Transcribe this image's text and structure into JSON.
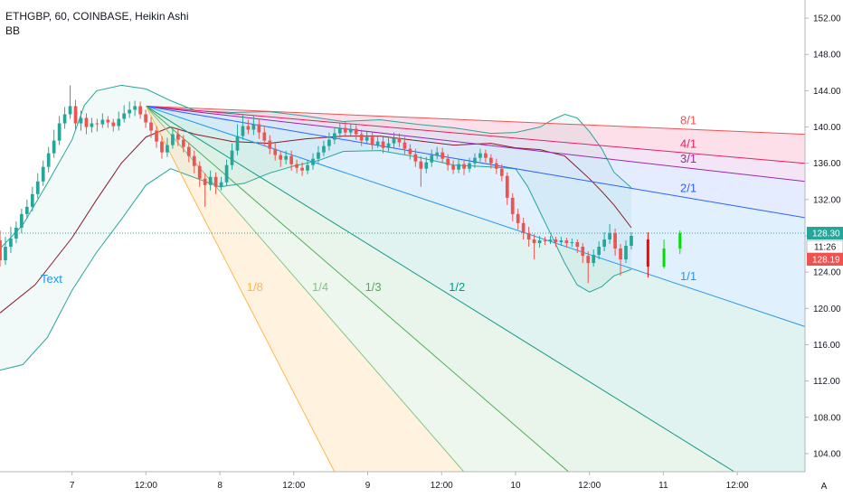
{
  "legend": {
    "symbol_line": "ETHGBP, 60, COINBASE, Heikin Ashi",
    "indicator": "BB"
  },
  "chart_data": {
    "type": "candlestick",
    "symbol": "ETHGBP",
    "interval": "60",
    "exchange": "COINBASE",
    "style": "Heikin Ashi",
    "ylim": [
      102,
      154
    ],
    "y_ticks": [
      104,
      108,
      112,
      116,
      120,
      124,
      128,
      132,
      136,
      140,
      144,
      148,
      152
    ],
    "y_tick_labels": [
      "104.00",
      "108.00",
      "112.00",
      "116.00",
      "120.00",
      "124.00",
      "128.00",
      "132.00",
      "136.00",
      "140.00",
      "144.00",
      "148.00",
      "152.00"
    ],
    "x_tick_labels": [
      "7",
      "12:00",
      "8",
      "12:00",
      "9",
      "12:00",
      "10",
      "12:00",
      "11",
      "12:00"
    ],
    "x_tick_hours": [
      0,
      12,
      24,
      36,
      48,
      60,
      72,
      84,
      96,
      108
    ],
    "x_start_hour": -11.7,
    "x_end_hour": 119,
    "corner_label": "A",
    "text_annotation": "Text",
    "price_lines": {
      "last_price": "128.30",
      "countdown": "11:26",
      "current": "128.19",
      "last_price_value": 128.3
    },
    "gann_fan": {
      "origin": {
        "hour": 12,
        "price": 142.3
      },
      "rays": [
        {
          "label": "8/1",
          "end_price": 139.2,
          "color": "#ef5350",
          "fill": "rgba(239,83,80,0.16)"
        },
        {
          "label": "4/1",
          "end_price": 136.0,
          "color": "#e91e63",
          "fill": "rgba(233,30,99,0.14)"
        },
        {
          "label": "3/1",
          "end_price": 134.0,
          "color": "#9c27b0",
          "fill": "rgba(156,39,176,0.12)"
        },
        {
          "label": "2/1",
          "end_price": 130.0,
          "color": "#2962ff",
          "fill": "rgba(41,98,255,0.12)"
        },
        {
          "label": "1/1",
          "end_price": 118.0,
          "color": "#2196f3",
          "fill": "rgba(33,150,243,0.14)"
        },
        {
          "label": "1/2",
          "end_price": 102.0,
          "end_hour": 107.5,
          "color": "#089981",
          "fill": "rgba(8,153,129,0.12)"
        },
        {
          "label": "1/3",
          "end_price": 102.0,
          "end_hour": 80.6,
          "color": "#4caf50",
          "fill": "rgba(76,175,80,0.12)"
        },
        {
          "label": "1/4",
          "end_price": 102.0,
          "end_hour": 63.6,
          "color": "#81c784",
          "fill": "rgba(129,199,132,0.14)"
        },
        {
          "label": "1/8",
          "end_price": 102.0,
          "end_hour": 42.6,
          "color": "#ffb74d",
          "fill": "rgba(255,183,77,0.18)"
        }
      ]
    },
    "candles": [
      [
        127.5,
        125.3,
        128.6,
        124.6
      ],
      [
        125.3,
        126.8,
        127.9,
        124.8
      ],
      [
        126.8,
        127.7,
        129.0,
        126.1
      ],
      [
        127.7,
        128.9,
        129.6,
        127.2
      ],
      [
        128.9,
        130.4,
        131.0,
        128.3
      ],
      [
        130.4,
        131.2,
        132.0,
        129.9
      ],
      [
        131.2,
        132.6,
        133.4,
        130.7
      ],
      [
        132.6,
        134.0,
        134.9,
        132.1
      ],
      [
        134.0,
        135.6,
        136.3,
        133.5
      ],
      [
        135.6,
        137.1,
        137.8,
        135.0
      ],
      [
        137.1,
        138.5,
        139.7,
        136.6
      ],
      [
        138.5,
        140.4,
        141.2,
        138.0
      ],
      [
        140.4,
        141.4,
        142.2,
        139.8
      ],
      [
        141.4,
        142.3,
        144.6,
        140.9
      ],
      [
        142.3,
        140.4,
        143.0,
        139.7
      ],
      [
        140.4,
        141.0,
        141.8,
        139.6
      ],
      [
        141.0,
        140.0,
        141.5,
        139.2
      ],
      [
        140.0,
        140.4,
        141.0,
        139.4
      ],
      [
        140.4,
        140.3,
        140.9,
        139.5
      ],
      [
        140.3,
        140.8,
        141.5,
        139.9
      ],
      [
        140.8,
        140.5,
        141.2,
        139.9
      ],
      [
        140.5,
        140.1,
        140.9,
        139.5
      ],
      [
        140.1,
        140.9,
        141.7,
        139.6
      ],
      [
        140.9,
        141.5,
        142.4,
        140.5
      ],
      [
        141.5,
        141.9,
        142.8,
        141.0
      ],
      [
        141.9,
        142.3,
        142.9,
        141.2
      ],
      [
        142.3,
        141.4,
        142.8,
        140.9
      ],
      [
        141.4,
        140.5,
        141.9,
        139.9
      ],
      [
        140.5,
        139.6,
        141.1,
        138.8
      ],
      [
        139.6,
        138.4,
        140.1,
        137.7
      ],
      [
        138.4,
        137.2,
        139.0,
        136.5
      ],
      [
        137.2,
        138.0,
        138.8,
        136.7
      ],
      [
        138.0,
        139.2,
        139.8,
        137.6
      ],
      [
        139.2,
        138.6,
        139.9,
        137.9
      ],
      [
        138.6,
        137.8,
        139.1,
        137.2
      ],
      [
        137.8,
        136.8,
        138.3,
        136.1
      ],
      [
        136.8,
        135.7,
        137.4,
        134.9
      ],
      [
        135.7,
        134.3,
        136.2,
        133.4
      ],
      [
        134.3,
        133.6,
        134.9,
        131.2
      ],
      [
        133.6,
        134.5,
        135.2,
        133.0
      ],
      [
        134.5,
        133.4,
        135.0,
        132.6
      ],
      [
        133.4,
        133.9,
        134.5,
        133.0
      ],
      [
        133.9,
        135.8,
        136.4,
        133.5
      ],
      [
        135.8,
        137.4,
        138.2,
        135.3
      ],
      [
        137.4,
        139.0,
        140.3,
        136.9
      ],
      [
        139.0,
        140.1,
        141.4,
        138.6
      ],
      [
        140.1,
        139.7,
        140.8,
        139.2
      ],
      [
        139.7,
        140.3,
        141.2,
        139.1
      ],
      [
        140.3,
        139.4,
        140.9,
        138.7
      ],
      [
        139.4,
        138.5,
        140.0,
        137.9
      ],
      [
        138.5,
        137.6,
        139.1,
        137.0
      ],
      [
        137.6,
        136.9,
        138.2,
        136.3
      ],
      [
        136.9,
        136.4,
        137.4,
        135.6
      ],
      [
        136.4,
        136.8,
        137.4,
        135.9
      ],
      [
        136.8,
        135.9,
        137.4,
        135.2
      ],
      [
        135.9,
        135.5,
        136.4,
        134.9
      ],
      [
        135.5,
        135.2,
        136.1,
        134.6
      ],
      [
        135.2,
        135.8,
        136.4,
        134.8
      ],
      [
        135.8,
        136.5,
        137.1,
        135.3
      ],
      [
        136.5,
        137.2,
        137.9,
        136.0
      ],
      [
        137.2,
        137.9,
        138.5,
        136.8
      ],
      [
        137.9,
        138.6,
        139.4,
        137.4
      ],
      [
        138.6,
        139.3,
        140.0,
        138.1
      ],
      [
        139.3,
        139.9,
        140.5,
        138.8
      ],
      [
        139.9,
        139.4,
        140.6,
        138.9
      ],
      [
        139.4,
        139.8,
        140.3,
        139.0
      ],
      [
        139.8,
        139.2,
        140.2,
        138.6
      ],
      [
        139.2,
        138.5,
        139.7,
        137.9
      ],
      [
        138.5,
        138.9,
        139.5,
        138.1
      ],
      [
        138.9,
        138.0,
        139.4,
        137.5
      ],
      [
        138.0,
        138.4,
        139.0,
        137.7
      ],
      [
        138.4,
        137.7,
        138.9,
        137.1
      ],
      [
        137.7,
        138.2,
        138.8,
        137.3
      ],
      [
        138.2,
        138.8,
        139.4,
        137.7
      ],
      [
        138.8,
        138.3,
        139.3,
        137.8
      ],
      [
        138.3,
        137.6,
        138.9,
        137.0
      ],
      [
        137.6,
        137.0,
        138.1,
        136.4
      ],
      [
        137.0,
        136.2,
        137.6,
        135.6
      ],
      [
        136.2,
        135.4,
        136.8,
        133.4
      ],
      [
        135.4,
        136.1,
        136.7,
        134.9
      ],
      [
        136.1,
        136.9,
        137.5,
        135.6
      ],
      [
        136.9,
        137.2,
        137.8,
        136.4
      ],
      [
        137.2,
        136.5,
        137.7,
        136.0
      ],
      [
        136.5,
        135.8,
        137.0,
        135.2
      ],
      [
        135.8,
        135.3,
        136.3,
        134.8
      ],
      [
        135.3,
        135.9,
        136.4,
        134.9
      ],
      [
        135.9,
        135.4,
        136.3,
        134.7
      ],
      [
        135.4,
        136.0,
        136.6,
        135.0
      ],
      [
        136.0,
        136.6,
        137.1,
        135.5
      ],
      [
        136.6,
        137.1,
        137.6,
        136.2
      ],
      [
        137.1,
        136.6,
        137.5,
        136.1
      ],
      [
        136.6,
        136.0,
        137.0,
        135.4
      ],
      [
        136.0,
        135.4,
        136.5,
        134.8
      ],
      [
        135.4,
        134.6,
        135.9,
        134.0
      ],
      [
        134.6,
        132.2,
        135.0,
        131.4
      ],
      [
        132.2,
        130.4,
        132.7,
        129.6
      ],
      [
        130.4,
        129.4,
        131.0,
        128.7
      ],
      [
        129.4,
        128.3,
        130.0,
        127.6
      ],
      [
        128.3,
        127.6,
        129.0,
        126.8
      ],
      [
        127.6,
        127.2,
        128.2,
        125.4
      ],
      [
        127.2,
        127.5,
        128.0,
        126.7
      ],
      [
        127.5,
        127.4,
        127.9,
        127.0
      ],
      [
        127.4,
        127.6,
        128.0,
        127.1
      ],
      [
        127.6,
        127.3,
        127.9,
        126.8
      ],
      [
        127.3,
        127.5,
        127.9,
        126.9
      ],
      [
        127.5,
        127.2,
        127.8,
        126.7
      ],
      [
        127.2,
        127.3,
        127.7,
        126.8
      ],
      [
        127.3,
        126.8,
        127.6,
        126.1
      ],
      [
        126.8,
        125.8,
        127.2,
        125.0
      ],
      [
        125.8,
        125.0,
        126.3,
        122.8
      ],
      [
        125.0,
        125.9,
        126.5,
        124.6
      ],
      [
        125.9,
        126.8,
        127.4,
        125.4
      ],
      [
        126.8,
        127.6,
        128.4,
        126.3
      ],
      [
        127.6,
        128.3,
        129.3,
        127.1
      ],
      [
        128.3,
        126.6,
        128.8,
        125.8
      ],
      [
        126.6,
        125.4,
        127.1,
        123.6
      ],
      [
        125.4,
        126.9,
        127.5,
        125.0
      ],
      [
        126.9,
        128.0,
        128.4,
        126.5
      ]
    ],
    "bollinger_basis": [
      [
        -11.7,
        119.5
      ],
      [
        -6,
        122.6
      ],
      [
        0,
        127.8
      ],
      [
        4,
        132.0
      ],
      [
        8,
        136.0
      ],
      [
        12,
        138.9
      ],
      [
        16,
        140.0
      ],
      [
        20,
        139.2
      ],
      [
        26,
        138.4
      ],
      [
        32,
        138.2
      ],
      [
        38,
        138.7
      ],
      [
        44,
        139.0
      ],
      [
        50,
        139.0
      ],
      [
        56,
        138.5
      ],
      [
        62,
        138.0
      ],
      [
        68,
        138.2
      ],
      [
        72,
        137.7
      ],
      [
        76,
        137.5
      ],
      [
        80,
        136.8
      ],
      [
        84,
        134.3
      ],
      [
        86,
        132.9
      ],
      [
        88,
        131.4
      ],
      [
        90.8,
        128.9
      ]
    ],
    "bollinger_upper": [
      [
        -11.7,
        126.6
      ],
      [
        -8,
        129.2
      ],
      [
        -4,
        133.8
      ],
      [
        0,
        138.6
      ],
      [
        2,
        142.4
      ],
      [
        4,
        144.0
      ],
      [
        8,
        144.6
      ],
      [
        12,
        144.2
      ],
      [
        16,
        142.9
      ],
      [
        20,
        141.8
      ],
      [
        26,
        141.6
      ],
      [
        32,
        141.7
      ],
      [
        38,
        141.2
      ],
      [
        44,
        140.6
      ],
      [
        50,
        140.8
      ],
      [
        56,
        140.3
      ],
      [
        62,
        139.9
      ],
      [
        68,
        139.3
      ],
      [
        72,
        139.4
      ],
      [
        76,
        140.0
      ],
      [
        78,
        140.8
      ],
      [
        80,
        141.4
      ],
      [
        82,
        141.0
      ],
      [
        84,
        139.5
      ],
      [
        86,
        137.6
      ],
      [
        88,
        135.0
      ],
      [
        90.8,
        133.3
      ]
    ],
    "bollinger_lower": [
      [
        -11.7,
        113.2
      ],
      [
        -8,
        113.8
      ],
      [
        -4,
        116.8
      ],
      [
        0,
        122.0
      ],
      [
        4,
        126.2
      ],
      [
        8,
        129.8
      ],
      [
        12,
        133.6
      ],
      [
        16,
        135.4
      ],
      [
        20,
        134.4
      ],
      [
        24,
        133.4
      ],
      [
        28,
        133.8
      ],
      [
        32,
        134.9
      ],
      [
        36,
        135.7
      ],
      [
        40,
        136.3
      ],
      [
        44,
        137.3
      ],
      [
        50,
        137.4
      ],
      [
        56,
        136.7
      ],
      [
        62,
        135.8
      ],
      [
        68,
        135.6
      ],
      [
        72,
        135.4
      ],
      [
        74,
        133.4
      ],
      [
        76,
        130.6
      ],
      [
        78,
        127.8
      ],
      [
        80,
        125.0
      ],
      [
        82,
        122.6
      ],
      [
        84,
        121.8
      ],
      [
        86,
        122.4
      ],
      [
        88,
        123.6
      ],
      [
        90.8,
        124.3
      ]
    ]
  }
}
